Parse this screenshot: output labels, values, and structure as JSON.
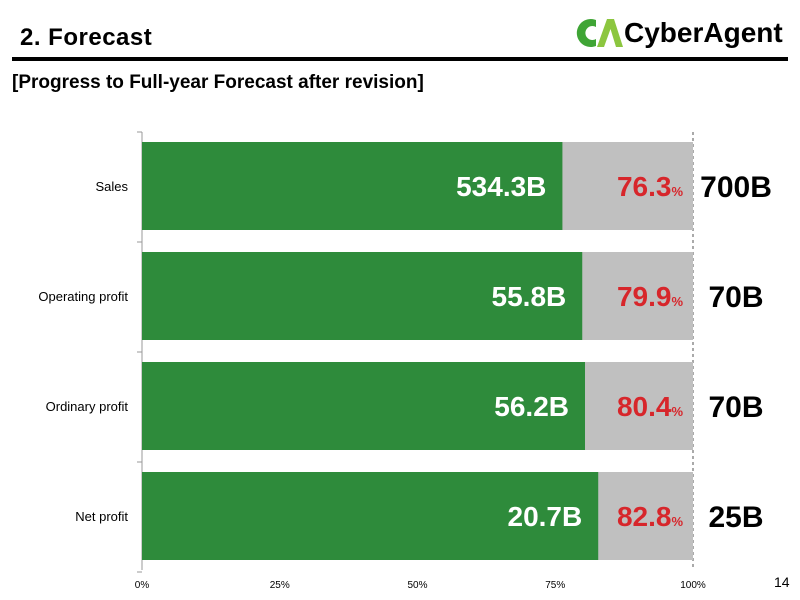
{
  "header": {
    "title": "2. Forecast",
    "logo_text": "CyberAgent"
  },
  "subtitle": "[Progress to Full-year Forecast after revision]",
  "page_number": "14",
  "colors": {
    "actual_bar": "#2e8b3b",
    "remaining_bar": "#c0c0c0",
    "percent_text": "#d7262b",
    "logo_green": "#3fa535",
    "logo_light_green": "#8cc63f"
  },
  "chart_data": {
    "type": "bar",
    "orientation": "horizontal",
    "stacked": true,
    "categories": [
      "Sales",
      "Operating profit",
      "Ordinary profit",
      "Net profit"
    ],
    "series": [
      {
        "values": [
          76.3,
          79.9,
          80.4,
          82.8
        ]
      }
    ],
    "actual_labels": [
      "534.3B",
      "55.8B",
      "56.2B",
      "20.7B"
    ],
    "percent_labels": [
      "76.3",
      "79.9",
      "80.4",
      "82.8"
    ],
    "percent_unit": "%",
    "forecast_labels": [
      "700B",
      "70B",
      "70B",
      "25B"
    ],
    "xlim": [
      0,
      100
    ],
    "x_ticks": [
      "0%",
      "25%",
      "50%",
      "75%",
      "100%"
    ],
    "title": "",
    "xlabel": "",
    "ylabel": "",
    "grid": false,
    "legend": "none"
  }
}
